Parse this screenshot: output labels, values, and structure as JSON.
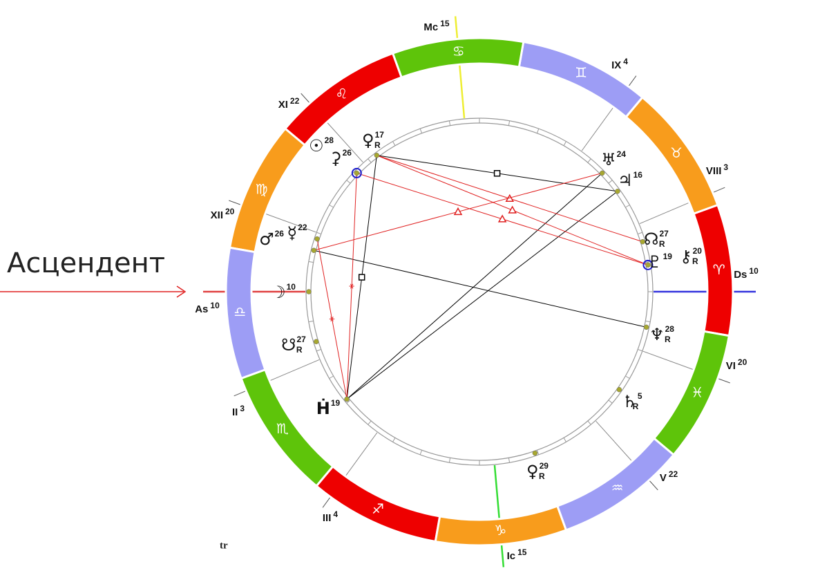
{
  "annotation": "Асцендент",
  "footer_mark": "tr",
  "zodiac": [
    {
      "glyph": "♈",
      "color": "#ee0000"
    },
    {
      "glyph": "♉",
      "color": "#f89c1c"
    },
    {
      "glyph": "♊",
      "color": "#9d9df5"
    },
    {
      "glyph": "♋",
      "color": "#5ec40a"
    },
    {
      "glyph": "♌",
      "color": "#ee0000"
    },
    {
      "glyph": "♍",
      "color": "#f89c1c"
    },
    {
      "glyph": "♎",
      "color": "#9d9df5"
    },
    {
      "glyph": "♏",
      "color": "#5ec40a"
    },
    {
      "glyph": "♐",
      "color": "#ee0000"
    },
    {
      "glyph": "♑",
      "color": "#f89c1c"
    },
    {
      "glyph": "♒",
      "color": "#9d9df5"
    },
    {
      "glyph": "♓",
      "color": "#5ec40a"
    }
  ],
  "houses": [
    {
      "label": "As",
      "degree": 10
    },
    {
      "label": "II",
      "degree": 3
    },
    {
      "label": "III",
      "degree": 4
    },
    {
      "label": "Ic",
      "degree": 15
    },
    {
      "label": "V",
      "degree": 22
    },
    {
      "label": "VI",
      "degree": 20
    },
    {
      "label": "Ds",
      "degree": 10
    },
    {
      "label": "VIII",
      "degree": 3
    },
    {
      "label": "IX",
      "degree": 4
    },
    {
      "label": "Mc",
      "degree": 15
    },
    {
      "label": "XI",
      "degree": 22
    },
    {
      "label": "XII",
      "degree": 20
    }
  ],
  "planets": [
    {
      "glyph": "☉",
      "degree": 28
    },
    {
      "glyph": "⚳",
      "degree": 26
    },
    {
      "glyph": "♀",
      "degree": 17,
      "retro": "R"
    },
    {
      "glyph": "♅",
      "degree": 24
    },
    {
      "glyph": "♃",
      "degree": 16
    },
    {
      "glyph": "☊",
      "degree": 27,
      "retro": "R"
    },
    {
      "glyph": "♇",
      "degree": 19
    },
    {
      "glyph": "⚷",
      "degree": 20,
      "retro": "R"
    },
    {
      "glyph": "♆",
      "degree": 28,
      "retro": "R"
    },
    {
      "glyph": "♄",
      "degree": 5,
      "retro": "R"
    },
    {
      "glyph": "♀",
      "degree": 29,
      "retro": "R"
    },
    {
      "glyph": "Ḣ",
      "degree": 19
    },
    {
      "glyph": "☋",
      "degree": 27,
      "retro": "R"
    },
    {
      "glyph": "☽",
      "degree": 10
    },
    {
      "glyph": "☿",
      "degree": 22
    },
    {
      "glyph": "♂",
      "degree": 26
    }
  ]
}
